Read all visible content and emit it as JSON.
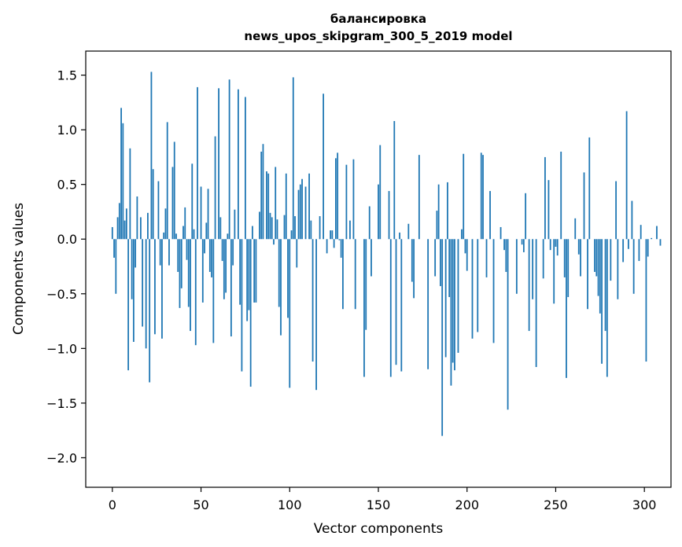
{
  "chart_data": {
    "type": "bar",
    "title_line1": "балансировка",
    "title_line2": "news_upos_skipgram_300_5_2019 model",
    "xlabel": "Vector components",
    "ylabel": "Components values",
    "xlim": [
      -15,
      315
    ],
    "ylim": [
      -2.27,
      1.72
    ],
    "xticks": [
      0,
      50,
      100,
      150,
      200,
      250,
      300
    ],
    "xtick_labels": [
      "0",
      "50",
      "100",
      "150",
      "200",
      "250",
      "300"
    ],
    "yticks": [
      -2.0,
      -1.5,
      -1.0,
      -0.5,
      0.0,
      0.5,
      1.0,
      1.5
    ],
    "ytick_labels": [
      "−2.0",
      "−1.5",
      "−1.0",
      "−0.5",
      "0.0",
      "0.5",
      "1.0",
      "1.5"
    ],
    "bar_color": "#1f77b4",
    "values": [
      0.11,
      -0.17,
      -0.5,
      0.2,
      0.33,
      1.2,
      1.06,
      0.17,
      0.28,
      -1.2,
      0.83,
      -0.55,
      -0.94,
      -0.26,
      0.39,
      0.0,
      0.2,
      -0.8,
      0.0,
      -1.0,
      0.24,
      -1.31,
      1.53,
      0.64,
      -0.87,
      0.0,
      0.53,
      -0.24,
      -0.91,
      0.06,
      0.28,
      1.07,
      -0.24,
      0.0,
      0.66,
      0.89,
      0.05,
      -0.3,
      -0.63,
      -0.45,
      0.12,
      0.29,
      -0.19,
      -0.62,
      -0.84,
      0.69,
      0.09,
      -0.97,
      1.39,
      0.0,
      0.48,
      -0.58,
      -0.13,
      0.15,
      0.46,
      -0.3,
      -0.35,
      -0.95,
      0.94,
      0.0,
      1.38,
      0.2,
      -0.2,
      -0.55,
      -0.49,
      0.05,
      1.46,
      -0.89,
      -0.24,
      0.27,
      0.0,
      1.37,
      -0.6,
      -1.21,
      0.0,
      1.3,
      -0.75,
      -0.65,
      -1.35,
      0.12,
      -0.58,
      -0.58,
      0.0,
      0.25,
      0.8,
      0.87,
      0.0,
      0.62,
      0.6,
      0.24,
      0.2,
      -0.05,
      0.66,
      0.18,
      -0.62,
      -0.88,
      0.0,
      0.22,
      0.6,
      -0.72,
      -1.36,
      0.08,
      1.48,
      0.21,
      -0.26,
      0.45,
      0.5,
      0.55,
      0.0,
      0.48,
      0.0,
      0.6,
      0.17,
      -1.12,
      0.0,
      -1.38,
      0.0,
      0.21,
      0.0,
      1.33,
      0.0,
      -0.13,
      0.0,
      0.08,
      0.08,
      -0.08,
      0.74,
      0.79,
      -0.01,
      -0.17,
      -0.64,
      0.0,
      0.68,
      0.0,
      0.17,
      0.0,
      0.73,
      -0.64,
      0.0,
      0.0,
      0.0,
      0.0,
      -1.26,
      -0.83,
      0.0,
      0.3,
      -0.34,
      0.0,
      0.0,
      0.0,
      0.5,
      0.86,
      0.0,
      0.0,
      0.0,
      0.0,
      0.44,
      -1.26,
      0.0,
      1.08,
      -1.15,
      0.0,
      0.06,
      -1.21,
      0.0,
      0.0,
      0.0,
      0.14,
      0.0,
      -0.39,
      -0.54,
      0.0,
      0.0,
      0.77,
      0.0,
      0.0,
      0.0,
      0.0,
      -1.19,
      0.0,
      0.0,
      0.0,
      -0.34,
      0.26,
      0.5,
      -0.43,
      -1.8,
      0.0,
      -1.08,
      0.52,
      -0.53,
      -1.34,
      -1.13,
      -1.2,
      0.0,
      -1.04,
      0.0,
      0.09,
      0.78,
      -0.13,
      -0.29,
      0.0,
      0.0,
      -0.91,
      0.0,
      0.0,
      -0.85,
      0.0,
      0.79,
      0.77,
      0.0,
      -0.35,
      0.0,
      0.44,
      0.0,
      -0.95,
      0.0,
      0.0,
      0.0,
      0.11,
      0.0,
      -0.1,
      -0.3,
      -1.56,
      0.0,
      0.0,
      0.0,
      0.0,
      -0.5,
      0.0,
      0.0,
      -0.05,
      -0.12,
      0.42,
      0.0,
      -0.84,
      0.0,
      -0.55,
      0.0,
      -1.17,
      0.0,
      0.0,
      0.0,
      -0.36,
      0.75,
      0.0,
      0.54,
      -0.1,
      0.0,
      -0.59,
      -0.07,
      -0.15,
      0.0,
      0.8,
      0.0,
      -0.35,
      -1.27,
      -0.53,
      0.0,
      0.0,
      0.0,
      0.19,
      0.0,
      -0.14,
      -0.34,
      0.0,
      0.61,
      0.0,
      -0.64,
      0.93,
      0.0,
      0.0,
      -0.3,
      -0.34,
      -0.52,
      -0.68,
      -1.14,
      0.0,
      -0.84,
      -1.26,
      0.0,
      -0.38,
      0.0,
      0.0,
      0.53,
      -0.55,
      0.0,
      0.0,
      -0.21,
      0.0,
      1.17,
      -0.09,
      0.0,
      0.35,
      -0.5,
      0.0,
      0.0,
      -0.2,
      0.13,
      0.0,
      0.0,
      -1.12,
      -0.16,
      0.0,
      0.01,
      0.0,
      0.0,
      0.12,
      0.0,
      -0.06,
      0.0,
      0.0
    ]
  }
}
